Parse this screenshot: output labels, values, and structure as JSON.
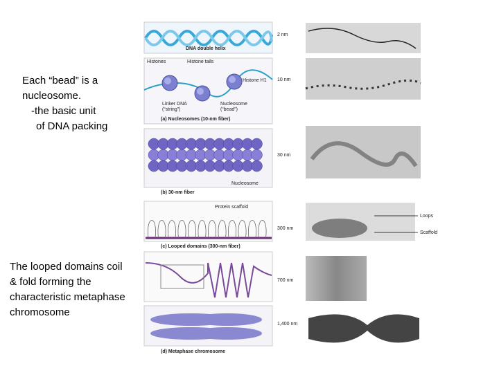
{
  "notes": [
    {
      "lines": [
        "Each “bead” is a",
        "nucleosome.",
        "-the basic unit",
        "of DNA packing"
      ]
    },
    {
      "lines": [
        "The looped domains coil",
        "& fold forming the",
        "characteristic metaphase",
        "chromosome"
      ]
    }
  ],
  "figure": {
    "helix": {
      "caption": "DNA double helix",
      "scale": "2 nm"
    },
    "nucleosomes": {
      "histones": "Histones",
      "tails": "Histone tails",
      "h1": "Histone H1",
      "scale": "10 nm",
      "linker": "Linker DNA",
      "linker_note": "(“string”)",
      "nucleosome": "Nucleosome",
      "nucleosome_note": "(“bead”)",
      "caption": "(a) Nucleosomes (10-nm fiber)"
    },
    "fiber30": {
      "scale": "30 nm",
      "nucleosome": "Nucleosome",
      "caption": "(b) 30-nm fiber"
    },
    "looped": {
      "scaffold_label": "Protein scaffold",
      "scale": "300 nm",
      "loops": "Loops",
      "scaffold": "Scaffold",
      "caption": "(c) Looped domains (300-nm fiber)"
    },
    "coiled": {
      "scale": "700 nm"
    },
    "chromosome": {
      "scale": "1,400 nm",
      "caption": "(d) Metaphase chromosome"
    }
  }
}
